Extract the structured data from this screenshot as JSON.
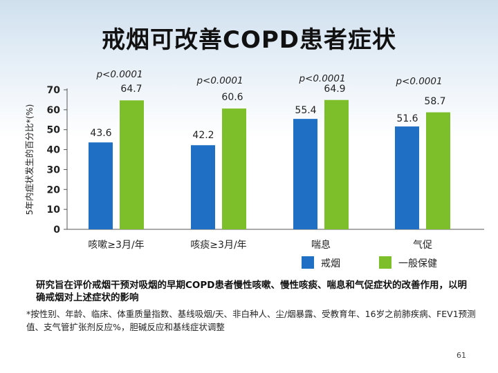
{
  "slide": {
    "title": "戒烟可改善COPD患者症状",
    "note": "研究旨在评价戒烟干预对吸烟的早期COPD患者慢性咳嗽、慢性咳痰、喘息和气促症状的改善作用，以明确戒烟对上述症状的影响",
    "footnote": "*按性别、年龄、临床、体重质量指数、基线吸烟/天、非白种人、尘/烟暴露、受教育年、16岁之前肺疾病、FEV1预测值、支气管扩张剂反应%，胆碱反应和基线症状调整",
    "page_number": "61"
  },
  "chart_data": {
    "type": "bar",
    "title": "",
    "ylabel": "5年内症状发生的百分比*(%)",
    "xlabel": "",
    "ylim": [
      0,
      70
    ],
    "yticks": [
      0,
      10,
      20,
      30,
      40,
      50,
      60,
      70
    ],
    "categories": [
      "咳嗽≥3月/年",
      "咳痰≥3月/年",
      "喘息",
      "气促"
    ],
    "series": [
      {
        "name": "戒烟",
        "values": [
          43.6,
          42.2,
          55.4,
          51.6
        ],
        "labels": [
          "43.6",
          "42.2",
          "55.4",
          "51.6"
        ],
        "color": "#1f6fc4"
      },
      {
        "name": "一般保健",
        "values": [
          64.7,
          60.6,
          64.9,
          58.7
        ],
        "labels": [
          "64.7",
          "60.6",
          "64.9",
          "58.7"
        ],
        "color": "#7dbf2a"
      }
    ],
    "annotations": [
      "p<0.0001",
      "p<0.0001",
      "p<0.0001",
      "p<0.0001"
    ],
    "legend_position": "bottom-right",
    "grid": false
  }
}
